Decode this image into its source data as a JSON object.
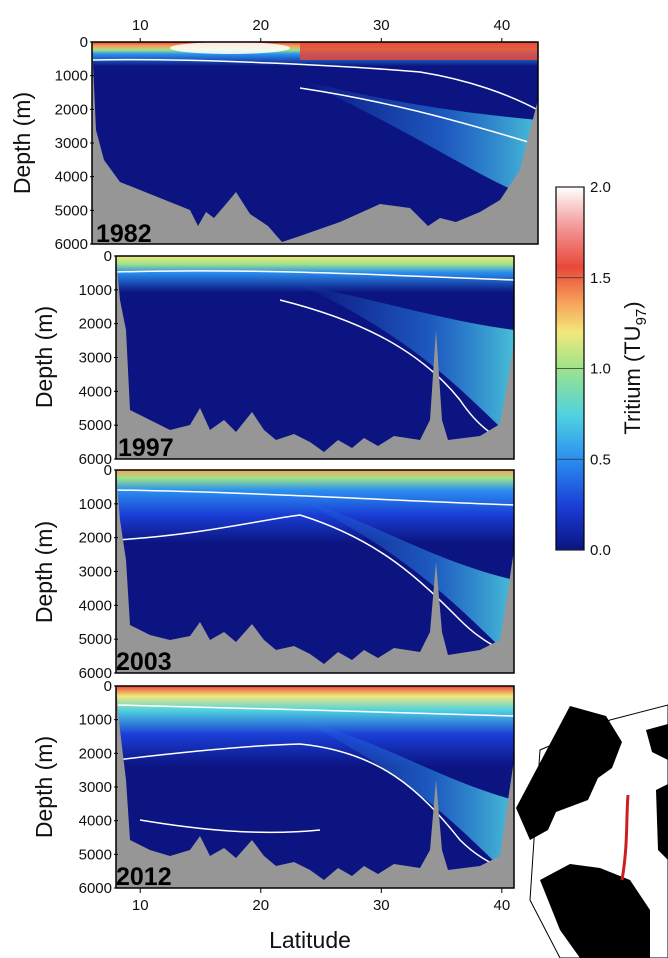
{
  "chart_data": {
    "type": "heatmap",
    "xlabel": "Latitude",
    "ylabel": "Depth (m)",
    "colorbar_label": "Tritium (TU",
    "colorbar_label_sub": "97",
    "colorbar_label_close": ")",
    "x_ticks": [
      "10",
      "20",
      "30",
      "40"
    ],
    "x_tick_values": [
      10,
      20,
      30,
      40
    ],
    "xlim": [
      6,
      43
    ],
    "y_ticks": [
      "0",
      "1000",
      "2000",
      "3000",
      "4000",
      "5000",
      "6000"
    ],
    "y_tick_values": [
      0,
      1000,
      2000,
      3000,
      4000,
      5000,
      6000
    ],
    "ylim": [
      0,
      6000
    ],
    "colorbar_ticks": [
      "0.0",
      "0.5",
      "1.0",
      "1.5",
      "2.0"
    ],
    "colorbar_tick_values": [
      0.0,
      0.5,
      1.0,
      1.5,
      2.0
    ],
    "color_range": [
      0.0,
      2.0
    ],
    "colormap": [
      "#0b1480",
      "#1a3ed6",
      "#2b8ff0",
      "#4fd2e0",
      "#9de38a",
      "#f2e87a",
      "#f7a35a",
      "#e8483a",
      "#f4a0a0",
      "#ffffff"
    ],
    "sections": [
      {
        "year": "1982"
      },
      {
        "year": "1997"
      },
      {
        "year": "2003"
      },
      {
        "year": "2012"
      }
    ]
  },
  "colors": {
    "bathymetry": "#969696",
    "deep_water": "#0b1480",
    "contour": "#ffffff",
    "track": "#cc1f1f",
    "land": "#000000"
  }
}
